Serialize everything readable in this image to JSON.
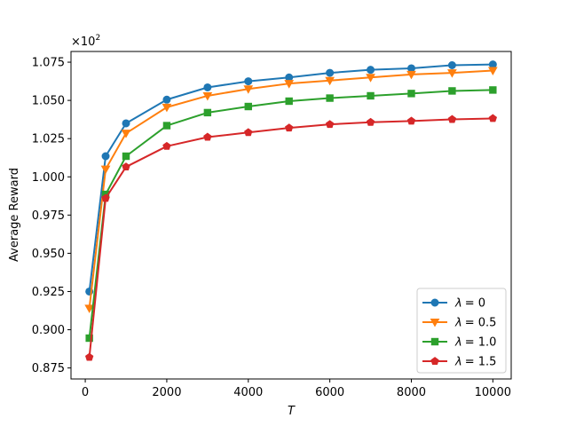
{
  "chart_data": {
    "type": "line",
    "xlabel": "T",
    "ylabel": "Average Reward",
    "y_multiplier_label": "×10",
    "y_multiplier_exp": "2",
    "x": [
      100,
      500,
      1000,
      2000,
      3000,
      4000,
      5000,
      6000,
      7000,
      8000,
      9000,
      10000
    ],
    "xlim": [
      -350,
      10450
    ],
    "ylim": [
      0.8678,
      1.082
    ],
    "x_ticks": [
      0,
      2000,
      4000,
      6000,
      8000,
      10000
    ],
    "x_tick_labels": [
      "0",
      "2000",
      "4000",
      "6000",
      "8000",
      "10000"
    ],
    "y_ticks": [
      0.875,
      0.9,
      0.925,
      0.95,
      0.975,
      1.0,
      1.025,
      1.05,
      1.075
    ],
    "y_tick_labels": [
      "0.875",
      "0.900",
      "0.925",
      "0.950",
      "0.975",
      "1.000",
      "1.025",
      "1.050",
      "1.075"
    ],
    "grid": false,
    "legend_position": "lower-right",
    "series": [
      {
        "name": "λ = 0",
        "legend_symbol": "λ",
        "legend_value": "= 0",
        "color": "#1f77b4",
        "marker": "circle",
        "values": [
          0.925,
          1.0135,
          1.035,
          1.0505,
          1.0585,
          1.0625,
          1.065,
          1.068,
          1.07,
          1.071,
          1.073,
          1.0735
        ]
      },
      {
        "name": "λ = 0.5",
        "legend_symbol": "λ",
        "legend_value": "= 0.5",
        "color": "#ff7f0e",
        "marker": "triangle-down",
        "values": [
          0.914,
          1.005,
          1.0285,
          1.0455,
          1.053,
          1.0575,
          1.061,
          1.063,
          1.065,
          1.067,
          1.068,
          1.0695
        ]
      },
      {
        "name": "λ = 1.0",
        "legend_symbol": "λ",
        "legend_value": "= 1.0",
        "color": "#2ca02c",
        "marker": "square",
        "values": [
          0.8945,
          0.9885,
          1.0135,
          1.0335,
          1.042,
          1.046,
          1.0495,
          1.0515,
          1.053,
          1.0545,
          1.0562,
          1.0568
        ]
      },
      {
        "name": "λ = 1.5",
        "legend_symbol": "λ",
        "legend_value": "= 1.5",
        "color": "#d62728",
        "marker": "pentagon",
        "values": [
          0.882,
          0.986,
          1.0065,
          1.02,
          1.026,
          1.029,
          1.032,
          1.0343,
          1.0357,
          1.0365,
          1.0376,
          1.0382
        ]
      }
    ]
  }
}
